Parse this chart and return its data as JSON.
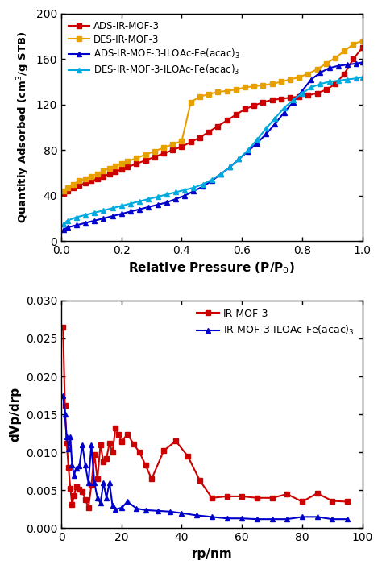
{
  "top": {
    "ads_ir_mof3_x": [
      0.008,
      0.02,
      0.04,
      0.06,
      0.08,
      0.1,
      0.12,
      0.14,
      0.16,
      0.18,
      0.2,
      0.22,
      0.25,
      0.28,
      0.31,
      0.34,
      0.37,
      0.4,
      0.43,
      0.46,
      0.49,
      0.52,
      0.55,
      0.58,
      0.61,
      0.64,
      0.67,
      0.7,
      0.73,
      0.76,
      0.79,
      0.82,
      0.85,
      0.88,
      0.91,
      0.94,
      0.97,
      1.0
    ],
    "ads_ir_mof3_y": [
      42,
      44,
      47,
      49,
      51,
      53,
      55,
      57,
      59,
      61,
      63,
      65,
      68,
      71,
      74,
      77,
      80,
      83,
      87,
      91,
      96,
      101,
      106,
      111,
      116,
      119,
      122,
      124,
      125,
      126,
      127,
      128,
      130,
      133,
      138,
      147,
      160,
      170
    ],
    "des_ir_mof3_x": [
      0.008,
      0.02,
      0.04,
      0.06,
      0.08,
      0.1,
      0.12,
      0.14,
      0.16,
      0.18,
      0.2,
      0.22,
      0.25,
      0.28,
      0.31,
      0.34,
      0.37,
      0.4,
      0.43,
      0.46,
      0.49,
      0.52,
      0.55,
      0.58,
      0.61,
      0.64,
      0.67,
      0.7,
      0.73,
      0.76,
      0.79,
      0.82,
      0.85,
      0.88,
      0.91,
      0.94,
      0.97,
      1.0
    ],
    "des_ir_mof3_y": [
      44,
      47,
      50,
      53,
      55,
      57,
      59,
      62,
      64,
      66,
      68,
      70,
      73,
      76,
      79,
      82,
      85,
      88,
      122,
      127,
      129,
      131,
      132,
      133,
      135,
      136,
      137,
      138,
      140,
      142,
      144,
      147,
      151,
      156,
      161,
      167,
      173,
      176
    ],
    "ads_ir_mof3_il_x": [
      0.008,
      0.02,
      0.05,
      0.08,
      0.11,
      0.14,
      0.17,
      0.2,
      0.23,
      0.26,
      0.29,
      0.32,
      0.35,
      0.38,
      0.41,
      0.44,
      0.47,
      0.5,
      0.53,
      0.56,
      0.59,
      0.62,
      0.65,
      0.68,
      0.71,
      0.74,
      0.77,
      0.8,
      0.83,
      0.86,
      0.89,
      0.92,
      0.95,
      0.98,
      1.0
    ],
    "ads_ir_mof3_il_y": [
      10,
      12,
      14,
      16,
      18,
      20,
      22,
      24,
      26,
      28,
      30,
      32,
      34,
      37,
      40,
      44,
      48,
      53,
      59,
      65,
      72,
      79,
      86,
      94,
      103,
      113,
      122,
      132,
      142,
      148,
      152,
      154,
      155,
      156,
      157
    ],
    "des_ir_mof3_il_x": [
      0.008,
      0.02,
      0.05,
      0.08,
      0.11,
      0.14,
      0.17,
      0.2,
      0.23,
      0.26,
      0.29,
      0.32,
      0.35,
      0.38,
      0.41,
      0.44,
      0.47,
      0.5,
      0.53,
      0.56,
      0.59,
      0.62,
      0.65,
      0.68,
      0.71,
      0.74,
      0.77,
      0.8,
      0.83,
      0.86,
      0.89,
      0.92,
      0.95,
      0.98,
      1.0
    ],
    "des_ir_mof3_il_y": [
      15,
      18,
      21,
      23,
      25,
      27,
      29,
      31,
      33,
      35,
      37,
      39,
      41,
      43,
      45,
      47,
      50,
      54,
      59,
      65,
      72,
      80,
      89,
      99,
      108,
      117,
      124,
      130,
      135,
      138,
      140,
      141,
      142,
      143,
      144
    ],
    "xlabel": "Relative Pressure (P/P$_0$)",
    "ylabel": "Quantitiy Adsorbed (cm$^3$/g STB)",
    "ylim": [
      0,
      200
    ],
    "yticks": [
      0,
      40,
      80,
      120,
      160,
      200
    ],
    "xlim": [
      0.0,
      1.0
    ],
    "xticks": [
      0.0,
      0.2,
      0.4,
      0.6,
      0.8,
      1.0
    ],
    "legend_labels": [
      "ADS-IR-MOF-3",
      "DES-IR-MOF-3",
      "ADS-IR-MOF-3-ILOAc-Fe(acac)$_3$",
      "DES-IR-MOF-3-ILOAc-Fe(acac)$_3$"
    ],
    "colors": [
      "#cc0000",
      "#e8a000",
      "#0000cc",
      "#00aadd"
    ]
  },
  "bottom": {
    "mof3_x": [
      0.6,
      1.2,
      1.8,
      2.4,
      3.0,
      3.6,
      4.2,
      5.0,
      6.0,
      7.0,
      8.0,
      9.0,
      10.0,
      11.0,
      12.0,
      13.0,
      14.0,
      15.0,
      16.0,
      17.0,
      18.0,
      19.0,
      20.0,
      22.0,
      24.0,
      26.0,
      28.0,
      30.0,
      34.0,
      38.0,
      42.0,
      46.0,
      50.0,
      55.0,
      60.0,
      65.0,
      70.0,
      75.0,
      80.0,
      85.0,
      90.0,
      95.0
    ],
    "mof3_y": [
      0.0265,
      0.0162,
      0.0112,
      0.008,
      0.0053,
      0.0031,
      0.0043,
      0.0055,
      0.0051,
      0.0048,
      0.0038,
      0.0027,
      0.0057,
      0.0097,
      0.0065,
      0.011,
      0.0088,
      0.0092,
      0.0112,
      0.01,
      0.0132,
      0.0124,
      0.0114,
      0.0124,
      0.0111,
      0.01,
      0.0083,
      0.0065,
      0.0102,
      0.0115,
      0.0095,
      0.0063,
      0.004,
      0.0042,
      0.0042,
      0.004,
      0.004,
      0.0045,
      0.0035,
      0.0046,
      0.0036,
      0.0035
    ],
    "mof3_il_x": [
      0.6,
      1.2,
      1.8,
      2.4,
      3.0,
      3.6,
      4.2,
      5.0,
      6.0,
      7.0,
      8.0,
      9.0,
      10.0,
      11.0,
      12.0,
      13.0,
      14.0,
      15.0,
      16.0,
      17.0,
      18.0,
      20.0,
      22.0,
      25.0,
      28.0,
      32.0,
      36.0,
      40.0,
      45.0,
      50.0,
      55.0,
      60.0,
      65.0,
      70.0,
      75.0,
      80.0,
      85.0,
      90.0,
      95.0
    ],
    "mof3_il_y": [
      0.0175,
      0.015,
      0.012,
      0.0105,
      0.012,
      0.0083,
      0.007,
      0.0079,
      0.0082,
      0.011,
      0.0083,
      0.006,
      0.011,
      0.006,
      0.004,
      0.0033,
      0.006,
      0.004,
      0.006,
      0.003,
      0.0025,
      0.0027,
      0.0035,
      0.0026,
      0.0024,
      0.0023,
      0.0022,
      0.002,
      0.0017,
      0.0015,
      0.0013,
      0.0013,
      0.0012,
      0.0012,
      0.0012,
      0.0015,
      0.0015,
      0.0012,
      0.0012
    ],
    "xlabel": "rp/nm",
    "ylabel": "dVp/drp",
    "ylim": [
      0.0,
      0.03
    ],
    "yticks": [
      0.0,
      0.005,
      0.01,
      0.015,
      0.02,
      0.025,
      0.03
    ],
    "xlim": [
      0,
      100
    ],
    "xticks": [
      0,
      20,
      40,
      60,
      80,
      100
    ],
    "legend_labels": [
      "IR-MOF-3",
      "IR-MOF-3-ILOAc-Fe(acac)$_3$"
    ],
    "colors": [
      "#cc0000",
      "#0000cc"
    ]
  }
}
